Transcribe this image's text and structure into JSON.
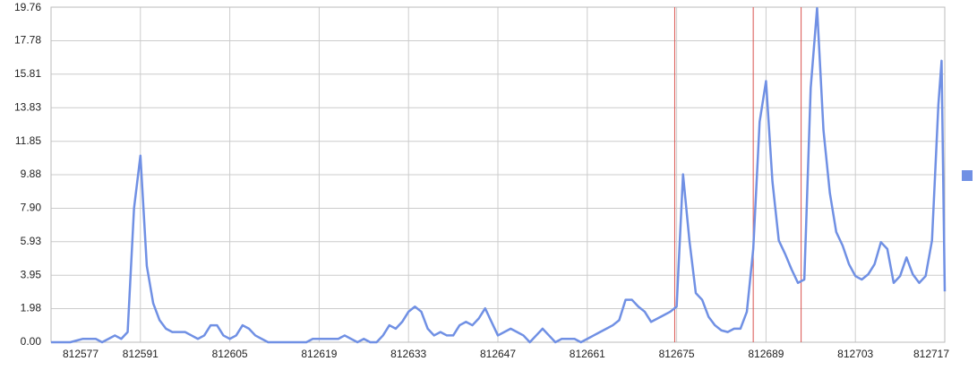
{
  "chart_data": {
    "type": "line",
    "x": [
      812577,
      812578,
      812579,
      812580,
      812581,
      812582,
      812583,
      812584,
      812585,
      812586,
      812587,
      812588,
      812589,
      812590,
      812591,
      812592,
      812593,
      812594,
      812595,
      812596,
      812597,
      812598,
      812599,
      812600,
      812601,
      812602,
      812603,
      812604,
      812605,
      812606,
      812607,
      812608,
      812609,
      812610,
      812611,
      812612,
      812613,
      812614,
      812615,
      812616,
      812617,
      812618,
      812619,
      812620,
      812621,
      812622,
      812623,
      812624,
      812625,
      812626,
      812627,
      812628,
      812629,
      812630,
      812631,
      812632,
      812633,
      812634,
      812635,
      812636,
      812637,
      812638,
      812639,
      812640,
      812641,
      812642,
      812643,
      812644,
      812645,
      812646,
      812647,
      812648,
      812649,
      812650,
      812651,
      812652,
      812653,
      812654,
      812655,
      812656,
      812657,
      812658,
      812659,
      812660,
      812661,
      812662,
      812663,
      812664,
      812665,
      812666,
      812667,
      812668,
      812669,
      812670,
      812671,
      812672,
      812673,
      812674,
      812675,
      812676,
      812677,
      812678,
      812679,
      812680,
      812681,
      812682,
      812683,
      812684,
      812685,
      812686,
      812687,
      812688,
      812689,
      812690,
      812691,
      812692,
      812693,
      812694,
      812695,
      812696,
      812697,
      812698,
      812699,
      812700,
      812701,
      812702,
      812703,
      812704,
      812705,
      812706,
      812707,
      812708,
      812709,
      812710,
      812711,
      812712,
      812713,
      812714,
      812715,
      812716,
      812716.5,
      812717
    ],
    "values": [
      0,
      0,
      0,
      0,
      0.1,
      0.2,
      0.2,
      0.2,
      0,
      0.2,
      0.4,
      0.2,
      0.6,
      7.9,
      11,
      4.5,
      2.3,
      1.3,
      0.8,
      0.6,
      0.6,
      0.6,
      0.4,
      0.2,
      0.4,
      1,
      1,
      0.4,
      0.2,
      0.4,
      1,
      0.8,
      0.4,
      0.2,
      0,
      0,
      0,
      0,
      0,
      0,
      0,
      0.2,
      0.2,
      0.2,
      0.2,
      0.2,
      0.4,
      0.2,
      0,
      0.2,
      0,
      0,
      0.4,
      1,
      0.8,
      1.2,
      1.8,
      2.1,
      1.8,
      0.8,
      0.4,
      0.6,
      0.4,
      0.4,
      1,
      1.2,
      1,
      1.4,
      2,
      1.2,
      0.4,
      0.6,
      0.8,
      0.6,
      0.4,
      0,
      0.4,
      0.8,
      0.4,
      0,
      0.2,
      0.2,
      0.2,
      0,
      0.2,
      0.4,
      0.6,
      0.8,
      1,
      1.3,
      2.5,
      2.5,
      2.1,
      1.8,
      1.2,
      1.4,
      1.6,
      1.8,
      2.1,
      9.9,
      6,
      2.9,
      2.5,
      1.5,
      1,
      0.7,
      0.6,
      0.8,
      0.8,
      1.8,
      5.5,
      13,
      15.4,
      9.5,
      6,
      5.2,
      4.3,
      3.5,
      3.7,
      15,
      19.7,
      12.5,
      8.8,
      6.5,
      5.7,
      4.6,
      3.9,
      3.7,
      4,
      4.6,
      5.9,
      5.5,
      3.5,
      3.9,
      5,
      4,
      3.5,
      3.9,
      6,
      14,
      16.6,
      3
    ],
    "color": "#7090e4",
    "xlim": [
      812577,
      812717
    ],
    "xticks": [
      812577,
      812591,
      812605,
      812619,
      812633,
      812647,
      812661,
      812675,
      812689,
      812703,
      812717
    ],
    "ylim": [
      0,
      19.76
    ],
    "yticks": [
      {
        "value": 0,
        "label": "0.00"
      },
      1.98,
      3.95,
      5.93,
      {
        "value": 7.9,
        "label": "7.90"
      },
      9.88,
      11.85,
      13.83,
      15.81,
      17.78,
      19.76
    ],
    "grid": true,
    "vlines": {
      "color": "#d9534f",
      "values": [
        812674.7,
        812687,
        812694.5
      ]
    },
    "legend": "right"
  }
}
